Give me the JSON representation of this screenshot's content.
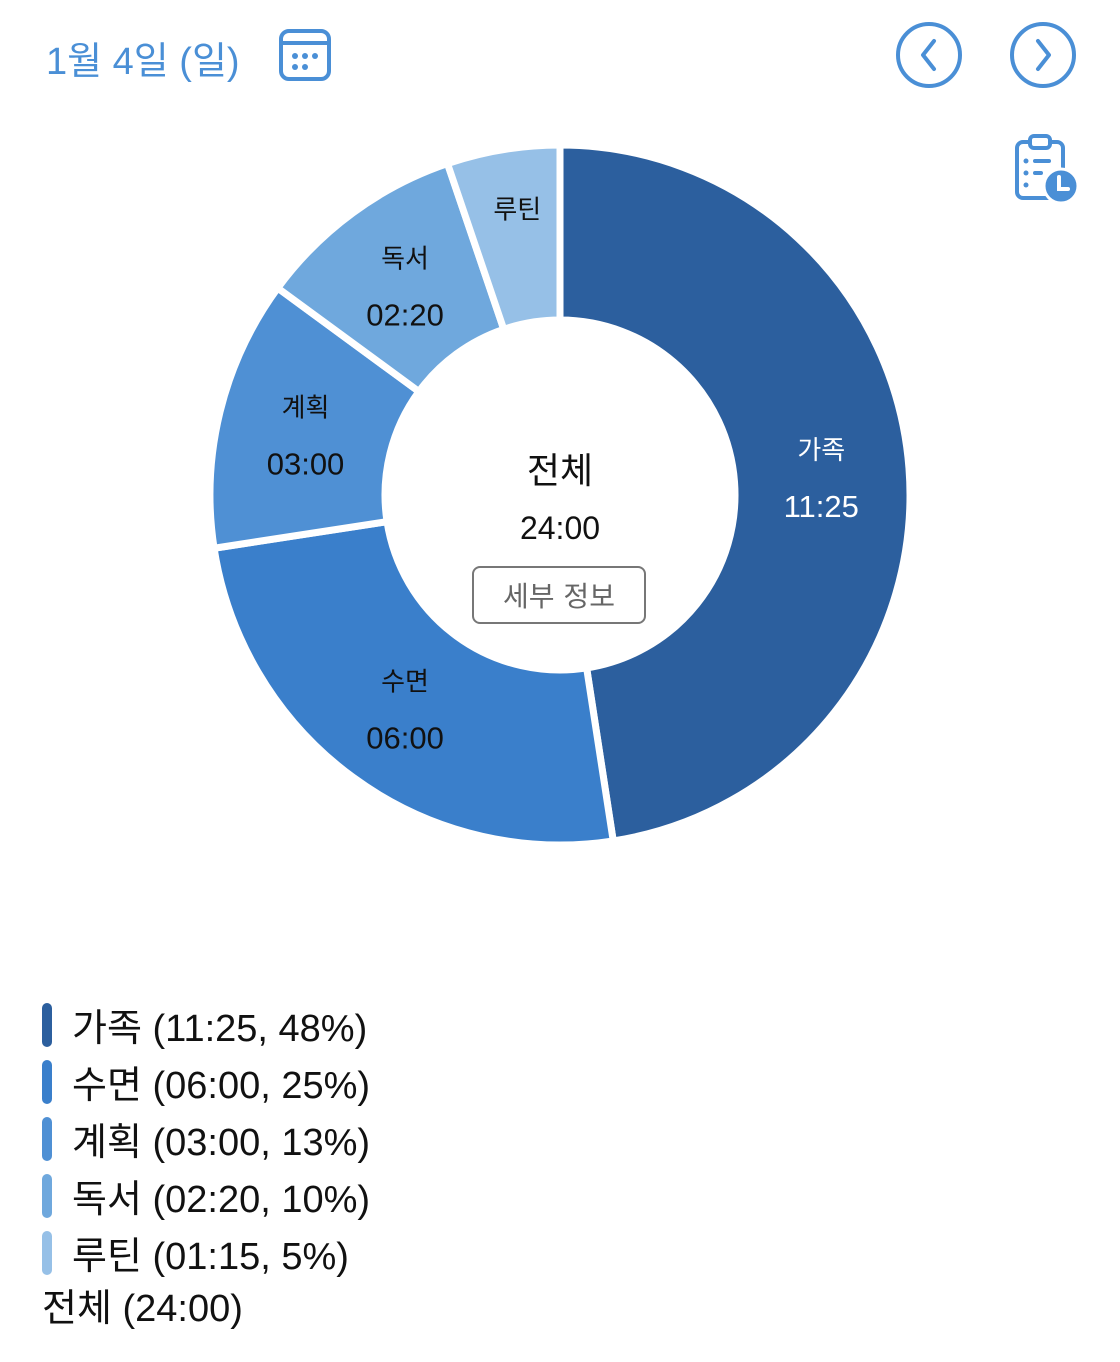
{
  "header": {
    "date": "1월 4일 (일)",
    "icons": [
      "calendar-icon",
      "chevron-left-circle-icon",
      "chevron-right-circle-icon",
      "clipboard-clock-icon"
    ],
    "accent_color": "#4a8fd6"
  },
  "center": {
    "title": "전체",
    "total": "24:00",
    "detail_button": "세부 정보"
  },
  "chart_data": {
    "type": "donut",
    "start": "top",
    "direction": "clockwise",
    "total_label": "전체",
    "total_time": "24:00",
    "slices": [
      {
        "name": "가족",
        "time": "11:25",
        "minutes": 685,
        "percent": "48%",
        "color": "#2c5f9e",
        "label_color": "#ffffff",
        "time_shown_on_chart": true
      },
      {
        "name": "수면",
        "time": "06:00",
        "minutes": 360,
        "percent": "25%",
        "color": "#3a7fcb",
        "label_color": "#111111",
        "time_shown_on_chart": true
      },
      {
        "name": "계획",
        "time": "03:00",
        "minutes": 180,
        "percent": "13%",
        "color": "#4f90d4",
        "label_color": "#111111",
        "time_shown_on_chart": true
      },
      {
        "name": "독서",
        "time": "02:20",
        "minutes": 140,
        "percent": "10%",
        "color": "#6fa8dd",
        "label_color": "#111111",
        "time_shown_on_chart": true
      },
      {
        "name": "루틴",
        "time": "01:15",
        "minutes": 75,
        "percent": "5%",
        "color": "#96c0e7",
        "label_color": "#111111",
        "time_shown_on_chart": false
      }
    ]
  },
  "legend": {
    "items": [
      {
        "text": "가족 (11:25, 48%)"
      },
      {
        "text": "수면 (06:00, 25%)"
      },
      {
        "text": "계획 (03:00, 13%)"
      },
      {
        "text": "독서 (02:20, 10%)"
      },
      {
        "text": "루틴 (01:15, 5%)"
      }
    ],
    "total": "전체 (24:00)"
  }
}
